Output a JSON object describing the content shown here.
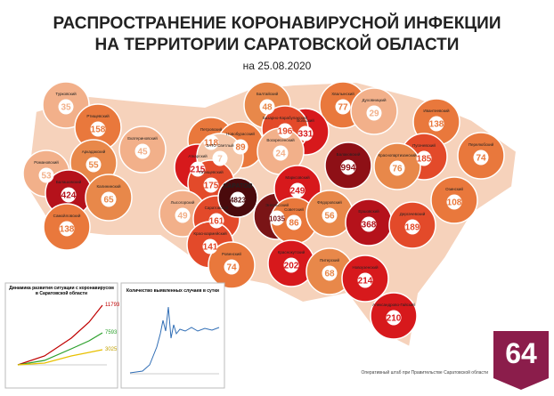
{
  "header": {
    "title_line1": "РАСПРОСТРАНЕНИЕ КОРОНАВИРУСНОЙ ИНФЕКЦИИ",
    "title_line2": "НА ТЕРРИТОРИИ САРАТОВСКОЙ ОБЛАСТИ",
    "date": "на 25.08.2020"
  },
  "districts": [
    {
      "name": "Балтайский",
      "count": "48",
      "color": "#e8884a"
    },
    {
      "name": "Хвалынский",
      "count": "77",
      "color": "#e9783c"
    },
    {
      "name": "Духовницкий",
      "count": "29",
      "color": "#f2b08a"
    },
    {
      "name": "Вольский",
      "count": "331",
      "color": "#d7191c"
    },
    {
      "name": "Базарно-Карабулакский",
      "count": "196",
      "color": "#e34a2a"
    },
    {
      "name": "Ивантеевский",
      "count": "138",
      "color": "#e9783c"
    },
    {
      "name": "Турковский",
      "count": "35",
      "color": "#f2b08a"
    },
    {
      "name": "Ртищевский",
      "count": "158",
      "color": "#e9783c"
    },
    {
      "name": "Аркадакский",
      "count": "55",
      "color": "#e8884a"
    },
    {
      "name": "Екатериновский",
      "count": "45",
      "color": "#f2b08a"
    },
    {
      "name": "Петровский",
      "count": "118",
      "color": "#e9783c"
    },
    {
      "name": "Новобурасский",
      "count": "89",
      "color": "#e9783c"
    },
    {
      "name": "Аткарский",
      "count": "215",
      "color": "#d7191c"
    },
    {
      "name": "ЗАТО Светлый",
      "count": "7",
      "color": "#f4c6a8"
    },
    {
      "name": "Татищевский",
      "count": "175",
      "color": "#e34a2a"
    },
    {
      "name": "Воскресенский",
      "count": "24",
      "color": "#f2b08a"
    },
    {
      "name": "Балаковский",
      "count": "994",
      "color": "#8e1016"
    },
    {
      "name": "Пугачевский",
      "count": "185",
      "color": "#e34a2a"
    },
    {
      "name": "Перелюбский",
      "count": "74",
      "color": "#e9783c"
    },
    {
      "name": "Краснопартизанский",
      "count": "76",
      "color": "#e8884a"
    },
    {
      "name": "Романовский",
      "count": "53",
      "color": "#f2b08a"
    },
    {
      "name": "Балашовский",
      "count": "424",
      "color": "#b5121b"
    },
    {
      "name": "Калининский",
      "count": "65",
      "color": "#e8884a"
    },
    {
      "name": "Лысогорский",
      "count": "49",
      "color": "#f2b08a"
    },
    {
      "name": "Саратовский",
      "count": "161",
      "color": "#e34a2a"
    },
    {
      "name": "САРАТОВ",
      "count": "4823",
      "color": "#4a0a0c"
    },
    {
      "name": "Энгельсский",
      "count": "1035",
      "color": "#7a1416"
    },
    {
      "name": "Марксовский",
      "count": "249",
      "color": "#d7191c"
    },
    {
      "name": "Советский",
      "count": "86",
      "color": "#e9783c"
    },
    {
      "name": "Фёдоровский",
      "count": "56",
      "color": "#e8884a"
    },
    {
      "name": "Ершовский",
      "count": "368",
      "color": "#b5121b"
    },
    {
      "name": "Дергачевский",
      "count": "189",
      "color": "#e34a2a"
    },
    {
      "name": "Озинский",
      "count": "108",
      "color": "#e9783c"
    },
    {
      "name": "Самойловский",
      "count": "138",
      "color": "#e9783c"
    },
    {
      "name": "Красноармейский",
      "count": "141",
      "color": "#e34a2a"
    },
    {
      "name": "Ровенский",
      "count": "74",
      "color": "#e9783c"
    },
    {
      "name": "Краснокутский",
      "count": "202",
      "color": "#d7191c"
    },
    {
      "name": "Питерский",
      "count": "68",
      "color": "#e8884a"
    },
    {
      "name": "Новоузенский",
      "count": "214",
      "color": "#d7191c"
    },
    {
      "name": "Александрово-Гайский",
      "count": "210",
      "color": "#d7191c"
    }
  ],
  "chart1": {
    "title": "Динамика развития ситуации с коронавирусом в Саратовской области",
    "labels": [
      "11793",
      "7593",
      "3025"
    ]
  },
  "chart2": {
    "title": "Количество выявленных случаев в сутки"
  },
  "footer": {
    "source": "Оперативный штаб при Правительстве Саратовской области",
    "logo": "64"
  }
}
